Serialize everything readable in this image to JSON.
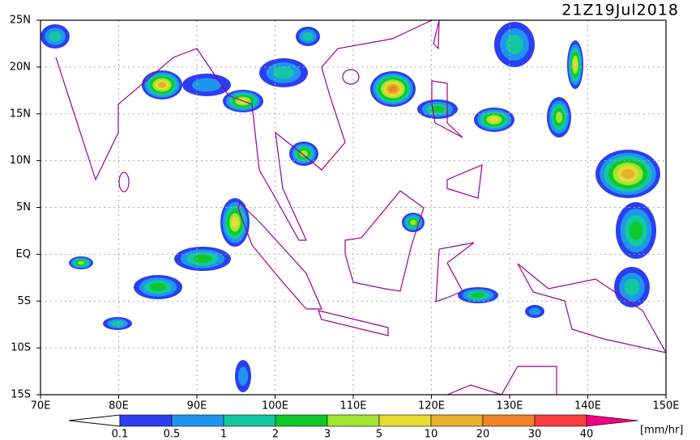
{
  "title": "21Z19Jul2018",
  "map": {
    "lon_range": [
      70,
      150
    ],
    "lat_range": [
      -15,
      25
    ],
    "lon_ticks": [
      {
        "value": 70,
        "label": "70E"
      },
      {
        "value": 80,
        "label": "80E"
      },
      {
        "value": 90,
        "label": "90E"
      },
      {
        "value": 100,
        "label": "100E"
      },
      {
        "value": 110,
        "label": "110E"
      },
      {
        "value": 120,
        "label": "120E"
      },
      {
        "value": 130,
        "label": "130E"
      },
      {
        "value": 140,
        "label": "140E"
      },
      {
        "value": 150,
        "label": "150E"
      }
    ],
    "lat_ticks": [
      {
        "value": 25,
        "label": "25N"
      },
      {
        "value": 20,
        "label": "20N"
      },
      {
        "value": 15,
        "label": "15N"
      },
      {
        "value": 10,
        "label": "10N"
      },
      {
        "value": 5,
        "label": "5N"
      },
      {
        "value": 0,
        "label": "EQ"
      },
      {
        "value": -5,
        "label": "5S"
      },
      {
        "value": -10,
        "label": "10S"
      },
      {
        "value": -15,
        "label": "15S"
      }
    ]
  },
  "colorbar": {
    "labels": [
      "0.1",
      "0.5",
      "1",
      "2",
      "3",
      "5",
      "10",
      "20",
      "30",
      "40"
    ],
    "colors": [
      "#2c3ef0",
      "#1e96f0",
      "#13c8a0",
      "#0dc828",
      "#a0e632",
      "#e6dc32",
      "#e6af2d",
      "#f08228",
      "#fa3c3c",
      "#f00082"
    ],
    "unit": "[mm/hr]"
  }
}
